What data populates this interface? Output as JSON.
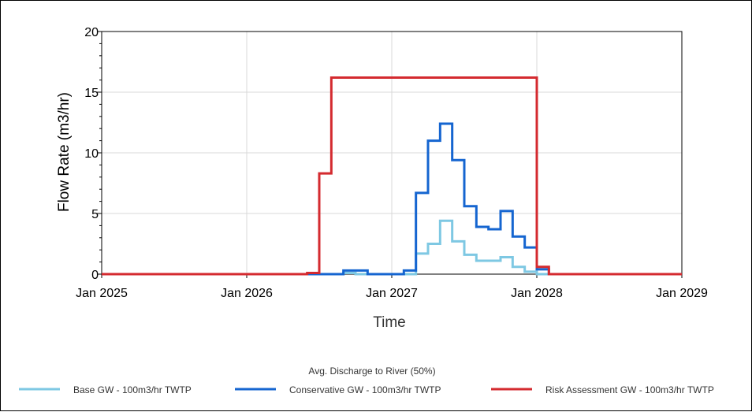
{
  "chart_data": {
    "type": "line",
    "step": true,
    "ylabel": "Flow Rate (m3/hr)",
    "xlabel": "Time",
    "ylim": [
      0,
      20
    ],
    "yticks": [
      0,
      5,
      10,
      15,
      20
    ],
    "xlim": [
      "2025-01",
      "2029-01"
    ],
    "xticks": [
      {
        "date": "2025-01",
        "label": "Jan 2025"
      },
      {
        "date": "2026-01",
        "label": "Jan 2026"
      },
      {
        "date": "2027-01",
        "label": "Jan 2027"
      },
      {
        "date": "2028-01",
        "label": "Jan 2028"
      },
      {
        "date": "2029-01",
        "label": "Jan 2029"
      }
    ],
    "grid": true,
    "legend_title": "Avg. Discharge to River (50%)",
    "legend_position": "bottom",
    "series": [
      {
        "name": "Base GW - 100m3/hr TWTP",
        "color": "#7ec8e3",
        "points": [
          [
            "2025-01",
            0
          ],
          [
            "2026-09",
            0.1
          ],
          [
            "2026-10",
            0
          ],
          [
            "2027-03",
            1.7
          ],
          [
            "2027-04",
            2.5
          ],
          [
            "2027-05",
            4.4
          ],
          [
            "2027-06",
            2.7
          ],
          [
            "2027-07",
            1.6
          ],
          [
            "2027-08",
            1.1
          ],
          [
            "2027-10",
            1.4
          ],
          [
            "2027-11",
            0.6
          ],
          [
            "2027-12",
            0.2
          ],
          [
            "2028-01",
            0
          ],
          [
            "2029-01",
            0
          ]
        ]
      },
      {
        "name": "Conservative GW - 100m3/hr TWTP",
        "color": "#1565d0",
        "points": [
          [
            "2025-01",
            0
          ],
          [
            "2026-09",
            0.3
          ],
          [
            "2026-11",
            0
          ],
          [
            "2027-02",
            0.3
          ],
          [
            "2027-03",
            6.7
          ],
          [
            "2027-04",
            11.0
          ],
          [
            "2027-05",
            12.4
          ],
          [
            "2027-06",
            9.4
          ],
          [
            "2027-07",
            5.6
          ],
          [
            "2027-08",
            3.9
          ],
          [
            "2027-09",
            3.7
          ],
          [
            "2027-10",
            5.2
          ],
          [
            "2027-11",
            3.1
          ],
          [
            "2027-12",
            2.2
          ],
          [
            "2028-01",
            0.4
          ],
          [
            "2028-02",
            0
          ],
          [
            "2029-01",
            0
          ]
        ]
      },
      {
        "name": "Risk Assessment GW - 100m3/hr TWTP",
        "color": "#d42a2f",
        "points": [
          [
            "2025-01",
            0
          ],
          [
            "2026-06",
            0.1
          ],
          [
            "2026-07",
            8.3
          ],
          [
            "2026-08",
            16.2
          ],
          [
            "2028-01",
            0.6
          ],
          [
            "2028-02",
            0
          ],
          [
            "2029-01",
            0
          ]
        ]
      }
    ]
  }
}
